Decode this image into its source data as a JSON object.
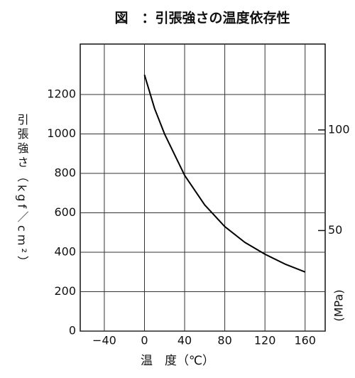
{
  "chart_data": {
    "type": "line",
    "title": "図　：引張強さの温度依存性",
    "x_label": "温　度（℃）",
    "y_label": "引張強さ（kgf／cm²）",
    "y2_label": "(MPa)",
    "x": [
      0,
      10,
      20,
      40,
      60,
      80,
      100,
      120,
      140,
      160
    ],
    "series": [
      {
        "color": "#000000",
        "values": [
          1300,
          1130,
          1000,
          790,
          640,
          530,
          450,
          390,
          340,
          300
        ]
      }
    ],
    "xlim": [
      -64,
      180
    ],
    "xticks": [
      {
        "value": -40,
        "label": "−40"
      },
      0,
      40,
      80,
      120,
      160
    ],
    "ylim": [
      0,
      1456
    ],
    "yticks": [
      0,
      200,
      400,
      600,
      800,
      1000,
      1200
    ],
    "y2lim": [
      0,
      142.7
    ],
    "y2ticks": [
      50,
      100
    ],
    "grid": true
  }
}
